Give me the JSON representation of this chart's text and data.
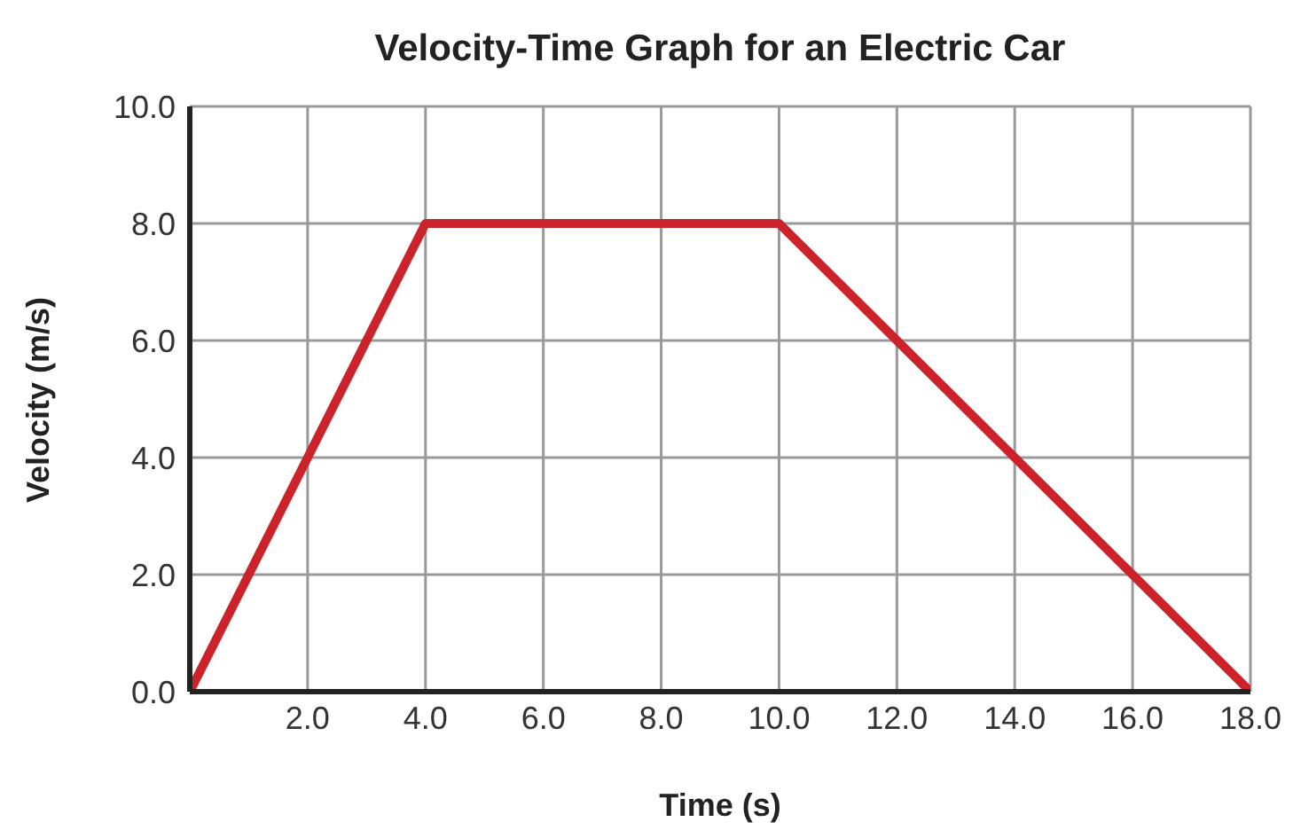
{
  "chart_data": {
    "type": "line",
    "title": "Velocity-Time Graph for an Electric Car",
    "xlabel": "Time (s)",
    "ylabel": "Velocity (m/s)",
    "x": [
      0,
      4,
      10,
      18
    ],
    "series": [
      {
        "color": "#cc2229",
        "values": [
          0,
          8,
          8,
          0
        ]
      }
    ],
    "xlim": [
      0,
      18
    ],
    "xticks": [
      {
        "value": 0,
        "label": null
      },
      {
        "value": 2,
        "label": "2.0"
      },
      {
        "value": 4,
        "label": "4.0"
      },
      {
        "value": 6,
        "label": "6.0"
      },
      {
        "value": 8,
        "label": "8.0"
      },
      {
        "value": 10,
        "label": "10.0"
      },
      {
        "value": 12,
        "label": "12.0"
      },
      {
        "value": 14,
        "label": "14.0"
      },
      {
        "value": 16,
        "label": "16.0"
      },
      {
        "value": 18,
        "label": "18.0"
      }
    ],
    "ylim": [
      0,
      10
    ],
    "yticks": [
      {
        "value": 0,
        "label": "0.0"
      },
      {
        "value": 2,
        "label": "2.0"
      },
      {
        "value": 4,
        "label": "4.0"
      },
      {
        "value": 6,
        "label": "6.0"
      },
      {
        "value": 8,
        "label": "8.0"
      },
      {
        "value": 10,
        "label": "10.0"
      }
    ],
    "grid": true,
    "marker": "none",
    "line_style": "solid",
    "legend": false
  }
}
